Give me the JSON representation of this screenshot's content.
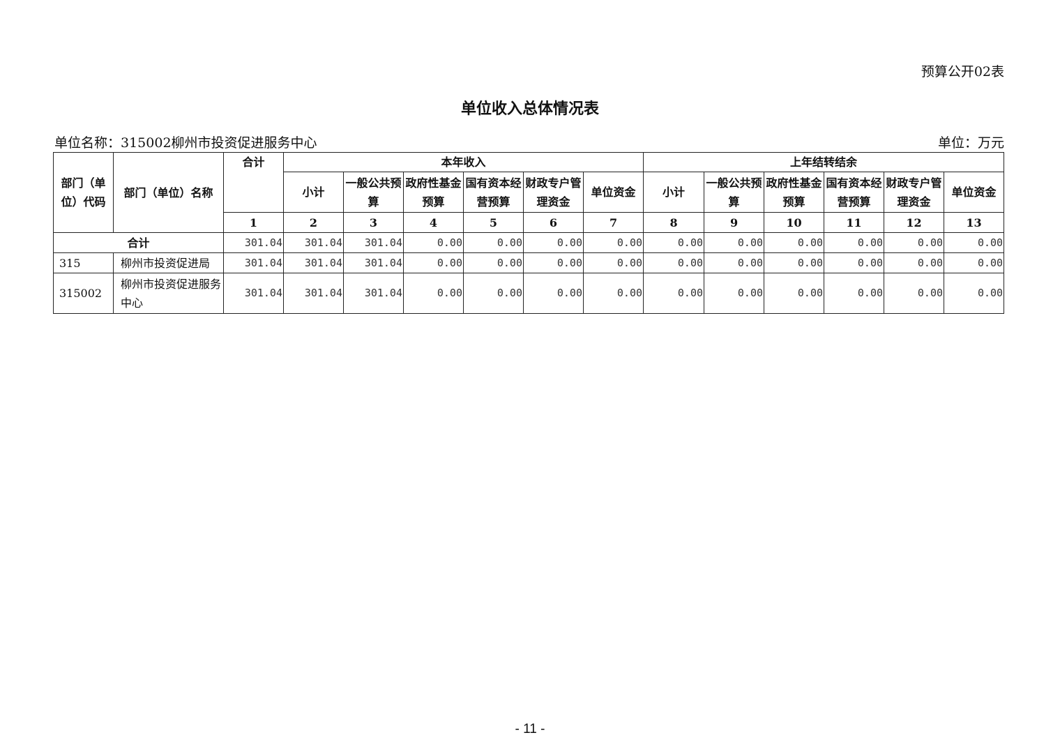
{
  "form_no": "预算公开02表",
  "title": "单位收入总体情况表",
  "unit_name": "单位名称：315002柳州市投资促进服务中心",
  "unit": "单位：万元",
  "header": {
    "code": "部门（单位）代码",
    "name": "部门（单位）名称",
    "total": "合计",
    "group_current": "本年收入",
    "group_carryover": "上年结转结余",
    "current_cols": [
      "小计",
      "一般公共预算",
      "政府性基金预算",
      "国有资本经营预算",
      "财政专户管理资金",
      "单位资金"
    ],
    "carryover_cols": [
      "小计",
      "一般公共预算",
      "政府性基金预算",
      "国有资本经营预算",
      "财政专户管理资金",
      "单位资金"
    ],
    "col_numbers": [
      "1",
      "2",
      "3",
      "4",
      "5",
      "6",
      "7",
      "8",
      "9",
      "10",
      "11",
      "12",
      "13"
    ]
  },
  "rows": [
    {
      "code": "",
      "name": "合计",
      "values": [
        "301.04",
        "301.04",
        "301.04",
        "0.00",
        "0.00",
        "0.00",
        "0.00",
        "0.00",
        "0.00",
        "0.00",
        "0.00",
        "0.00",
        "0.00"
      ]
    },
    {
      "code": "315",
      "name": "柳州市投资促进局",
      "values": [
        "301.04",
        "301.04",
        "301.04",
        "0.00",
        "0.00",
        "0.00",
        "0.00",
        "0.00",
        "0.00",
        "0.00",
        "0.00",
        "0.00",
        "0.00"
      ]
    },
    {
      "code": "315002",
      "name": "柳州市投资促进服务中心",
      "values": [
        "301.04",
        "301.04",
        "301.04",
        "0.00",
        "0.00",
        "0.00",
        "0.00",
        "0.00",
        "0.00",
        "0.00",
        "0.00",
        "0.00",
        "0.00"
      ]
    }
  ],
  "page_number": "- 11 -"
}
